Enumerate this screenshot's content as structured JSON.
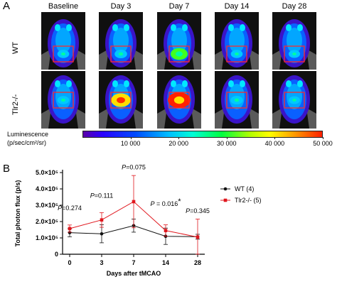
{
  "panel_a": {
    "letter": "A",
    "columns": [
      "Baseline",
      "Day 3",
      "Day 7",
      "Day 14",
      "Day 28"
    ],
    "rows": [
      "WT",
      "Tlr2-/-"
    ],
    "signal_levels": {
      "WT": [
        0.15,
        0.2,
        0.55,
        0.15,
        0.12
      ],
      "Tlr2-/-": [
        0.15,
        0.75,
        1.0,
        0.2,
        0.1
      ]
    },
    "colorbar": {
      "title_line1": "Luminescence",
      "title_line2": "(p/sec/cm²/sr)",
      "tick_labels": [
        "10 000",
        "20 000",
        "30 000",
        "40 000",
        "50 000"
      ],
      "tick_values": [
        10000,
        20000,
        30000,
        40000,
        50000
      ],
      "max": 50000
    }
  },
  "chart_data": {
    "type": "line",
    "panel_letter": "B",
    "ylabel": "Total photon flux (p/s)",
    "xlabel": "Days after tMCAO",
    "categories": [
      "0",
      "3",
      "7",
      "14",
      "28"
    ],
    "ylim": [
      0,
      500000
    ],
    "yticks": [
      {
        "value": 0,
        "label": "0"
      },
      {
        "value": 100000,
        "label": "1.0×10⁵"
      },
      {
        "value": 200000,
        "label": "2.0×10⁵"
      },
      {
        "value": 300000,
        "label": "3.0×10⁵"
      },
      {
        "value": 400000,
        "label": "4.0×10⁵"
      },
      {
        "value": 500000,
        "label": "5.0×10⁵"
      }
    ],
    "series": [
      {
        "name": "WT (4)",
        "color": "#111111",
        "values": [
          132000,
          125000,
          175000,
          110000,
          107000
        ],
        "error": [
          25000,
          55000,
          40000,
          50000,
          15000
        ]
      },
      {
        "name": "Tlr2-/- (5)",
        "color": "#e0161d",
        "values": [
          157000,
          210000,
          322000,
          145000,
          105000
        ],
        "error": [
          22000,
          45000,
          160000,
          35000,
          110000
        ]
      }
    ],
    "annotations": [
      {
        "text": "P=0.274",
        "category": "0",
        "y": 270000
      },
      {
        "text": "P=0.111",
        "category": "3",
        "y": 345000
      },
      {
        "text": "P=0.075",
        "category": "7",
        "y": 520000
      },
      {
        "text": "P = 0.016",
        "category": "14",
        "y": 295000,
        "star": "*"
      },
      {
        "text": "P=0.345",
        "category": "28",
        "y": 252000
      }
    ],
    "legend_position": "right"
  }
}
